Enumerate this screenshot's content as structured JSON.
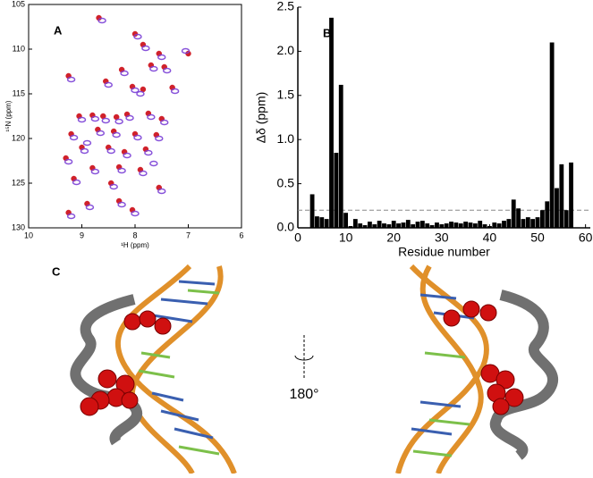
{
  "chart_data": [
    {
      "type": "scatter",
      "panel_label": "A",
      "x_label": "¹H (ppm)",
      "y_label": "¹⁵N (ppm)",
      "xlim": [
        10,
        6
      ],
      "xticks": [
        10,
        9,
        8,
        7,
        6
      ],
      "ylim": [
        130,
        105
      ],
      "yticks": [
        105,
        110,
        115,
        120,
        125,
        130
      ],
      "series": [
        {
          "color": "#cc0a14",
          "x": [
            8.68,
            8.0,
            7.85,
            7.55,
            7.0,
            7.45,
            7.7,
            8.25,
            9.25,
            8.55,
            8.05,
            7.85,
            7.3,
            9.05,
            8.8,
            8.6,
            8.35,
            8.15,
            7.75,
            7.5,
            9.2,
            8.7,
            8.4,
            8.0,
            7.6,
            9.0,
            8.5,
            8.2,
            7.8,
            9.3,
            8.8,
            8.3,
            7.9,
            9.15,
            8.45,
            7.55,
            8.9,
            8.3,
            9.25,
            8.05
          ],
          "values": [
            106.5,
            108.3,
            109.5,
            110.5,
            110.5,
            112,
            111.8,
            112.3,
            113,
            113.6,
            114.2,
            114.5,
            114.3,
            117.5,
            117.4,
            117.5,
            117.6,
            117.3,
            117.2,
            117.8,
            119.5,
            119,
            119.2,
            119.5,
            119.6,
            121,
            121,
            121.5,
            121.2,
            122.2,
            123.3,
            123.2,
            123.5,
            124.5,
            125,
            125.5,
            127.3,
            127,
            128.3,
            128
          ]
        },
        {
          "color": "#7a3fd6",
          "x": [
            8.62,
            7.95,
            7.8,
            7.5,
            7.05,
            7.4,
            7.65,
            8.2,
            9.2,
            8.5,
            8.0,
            7.9,
            7.25,
            9.0,
            8.75,
            8.55,
            8.3,
            8.1,
            7.7,
            7.45,
            9.15,
            8.65,
            8.35,
            7.95,
            7.55,
            8.95,
            8.45,
            8.15,
            7.75,
            9.25,
            8.75,
            8.25,
            7.85,
            9.1,
            8.4,
            7.5,
            8.85,
            8.25,
            9.2,
            8.0,
            7.65,
            8.9
          ],
          "values": [
            106.8,
            108.6,
            109.9,
            110.9,
            110.2,
            112.4,
            112.2,
            112.7,
            113.4,
            114,
            114.6,
            115,
            114.7,
            117.9,
            117.8,
            118,
            118.1,
            117.7,
            117.6,
            118.2,
            119.9,
            119.4,
            119.6,
            119.9,
            120,
            121.4,
            121.4,
            121.9,
            121.6,
            122.6,
            123.7,
            123.6,
            123.9,
            124.9,
            125.4,
            125.9,
            127.7,
            127.4,
            128.7,
            128.4,
            122.8,
            120.5
          ]
        }
      ]
    },
    {
      "type": "bar",
      "panel_label": "B",
      "x_label": "Residue number",
      "y_label": "Δδ (ppm)",
      "color": "#000000",
      "xlim": [
        0,
        61
      ],
      "xticks": [
        0,
        10,
        20,
        30,
        40,
        50,
        60
      ],
      "ylim": [
        0,
        2.5
      ],
      "yticks": [
        {
          "value": 0,
          "label": "0.0"
        },
        0.5,
        {
          "value": 1,
          "label": "1.0"
        },
        1.5,
        {
          "value": 2,
          "label": "2.0"
        },
        2.5
      ],
      "reference_line": 0.2,
      "x": [
        3,
        4,
        5,
        6,
        7,
        8,
        9,
        10,
        11,
        12,
        13,
        14,
        15,
        16,
        17,
        18,
        19,
        20,
        21,
        22,
        23,
        24,
        25,
        26,
        27,
        28,
        29,
        30,
        31,
        32,
        33,
        34,
        35,
        36,
        37,
        38,
        39,
        40,
        41,
        42,
        43,
        44,
        45,
        46,
        47,
        48,
        49,
        50,
        51,
        52,
        53,
        54,
        55,
        56,
        57
      ],
      "values": [
        0.38,
        0.13,
        0.12,
        0.1,
        2.38,
        0.85,
        1.62,
        0.17,
        0.02,
        0.1,
        0.05,
        0.03,
        0.07,
        0.04,
        0.08,
        0.05,
        0.04,
        0.08,
        0.05,
        0.06,
        0.09,
        0.04,
        0.07,
        0.08,
        0.05,
        0.03,
        0.06,
        0.04,
        0.05,
        0.07,
        0.06,
        0.05,
        0.07,
        0.06,
        0.05,
        0.08,
        0.04,
        0.02,
        0.06,
        0.05,
        0.08,
        0.1,
        0.32,
        0.22,
        0.1,
        0.12,
        0.1,
        0.12,
        0.2,
        0.3,
        2.1,
        0.45,
        0.72,
        0.2,
        0.74
      ]
    }
  ],
  "panel_c": {
    "panel_label": "C",
    "rotation_label": "180°"
  }
}
